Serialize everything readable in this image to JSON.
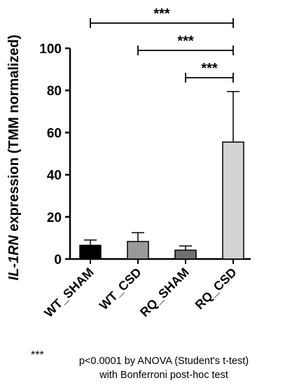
{
  "chart_data": {
    "type": "bar",
    "ylabel_italic": "IL-1RN",
    "ylabel_rest": " expression (TMM normalized)",
    "xlabel": "",
    "ylim": [
      0,
      100
    ],
    "yticks": [
      "0",
      "20",
      "40",
      "60",
      "80",
      "100"
    ],
    "categories": [
      "WT_SHAM",
      "WT_CSD",
      "RQ_SHAM",
      "RQ_CSD"
    ],
    "values": [
      6.5,
      8.3,
      4.2,
      55.5
    ],
    "errors": [
      2.5,
      4.2,
      2.0,
      24.0
    ],
    "colors": [
      "#000000",
      "#9a9a9a",
      "#707070",
      "#d3d3d3"
    ],
    "significance": [
      {
        "from": 0,
        "to": 3,
        "label": "***"
      },
      {
        "from": 1,
        "to": 3,
        "label": "***"
      },
      {
        "from": 2,
        "to": 3,
        "label": "***"
      }
    ],
    "footnote": {
      "marker": "***",
      "line1": "p<0.0001 by ANOVA (Student's t-test)",
      "line2": "with Bonferroni post-hoc test"
    }
  }
}
